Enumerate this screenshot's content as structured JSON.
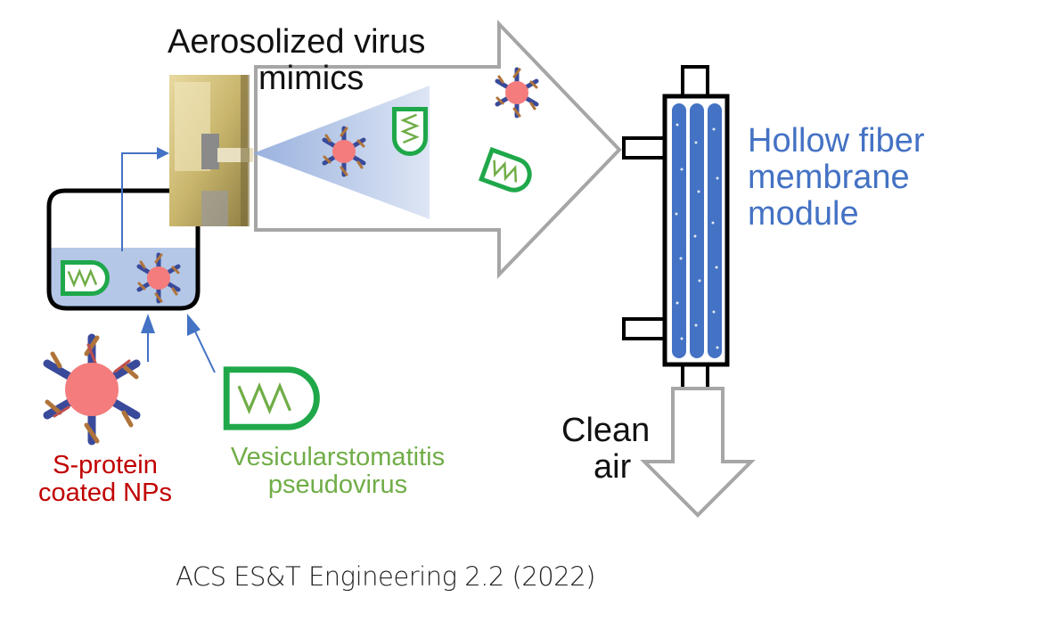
{
  "labels": {
    "aerosolized_line1": "Aerosolized virus",
    "aerosolized_line2": "mimics",
    "hollow_line1": "Hollow fiber",
    "hollow_line2": "membrane",
    "hollow_line3": "module",
    "clean_line1": "Clean",
    "clean_line2": "air",
    "sprotein_line1": "S-protein",
    "sprotein_line2": "coated NPs",
    "vsv_line1": "Vesicularstomatitis",
    "vsv_line2": "pseudovirus",
    "citation": "ACS ES&T Engineering 2.2 (2022)"
  },
  "colors": {
    "pseudovirus_green": "#1fa84a",
    "wave_green": "#70ad47",
    "nanoparticle_pink": "#f47c7c",
    "membrane_blue": "#4472c4",
    "arrow_gray": "#a6a6a6",
    "liquid_blue": "#b4c7e7"
  },
  "icons": [
    "nebulizer-device",
    "nanoparticle-icon",
    "pseudovirus-icon",
    "hollow-fiber-module",
    "flow-arrow"
  ]
}
